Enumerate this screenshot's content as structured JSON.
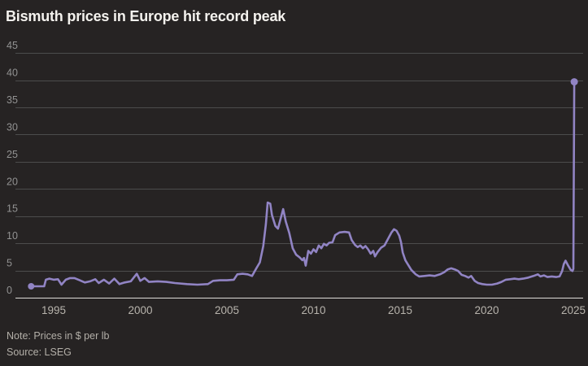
{
  "title": "Bismuth prices in Europe hit record peak",
  "note": "Note: Prices in $ per lb",
  "source": "Source: LSEG",
  "colors": {
    "background": "#262323",
    "line": "#9184c4",
    "gridline": "#4c4c4c",
    "baseline": "#dddbd8",
    "y_tick_label": "#929292",
    "x_tick_label": "#b7b3ac",
    "title_text": "#f4f2ee",
    "note_text": "#b3afa8"
  },
  "chart_data": {
    "type": "line",
    "title": "Bismuth prices in Europe hit record peak",
    "xlabel": "",
    "ylabel": "",
    "unit": "$ per lb",
    "xlim": [
      1993.2,
      2025.8
    ],
    "ylim": [
      0,
      45
    ],
    "x_ticks": [
      1995,
      2000,
      2005,
      2010,
      2015,
      2020,
      2025
    ],
    "y_ticks": [
      0,
      5,
      10,
      15,
      20,
      25,
      30,
      35,
      40,
      45
    ],
    "grid": "horizontal",
    "legend": "none",
    "markers": "circle at first and last data point",
    "series": [
      {
        "name": "Bismuth price, Europe ($ per lb)",
        "points": [
          [
            1993.7,
            2.1
          ],
          [
            1994.1,
            2.1
          ],
          [
            1994.45,
            2.1
          ],
          [
            1994.55,
            3.3
          ],
          [
            1994.75,
            3.5
          ],
          [
            1995.0,
            3.3
          ],
          [
            1995.25,
            3.4
          ],
          [
            1995.45,
            2.4
          ],
          [
            1995.7,
            3.3
          ],
          [
            1995.95,
            3.6
          ],
          [
            1996.2,
            3.6
          ],
          [
            1996.5,
            3.2
          ],
          [
            1996.8,
            2.8
          ],
          [
            1997.1,
            3.0
          ],
          [
            1997.4,
            3.4
          ],
          [
            1997.6,
            2.7
          ],
          [
            1997.9,
            3.3
          ],
          [
            1998.2,
            2.6
          ],
          [
            1998.5,
            3.5
          ],
          [
            1998.8,
            2.5
          ],
          [
            1999.1,
            2.8
          ],
          [
            1999.45,
            3.0
          ],
          [
            1999.8,
            4.4
          ],
          [
            2000.0,
            3.1
          ],
          [
            2000.25,
            3.6
          ],
          [
            2000.5,
            2.9
          ],
          [
            2001.0,
            3.0
          ],
          [
            2001.5,
            2.9
          ],
          [
            2002.0,
            2.7
          ],
          [
            2002.7,
            2.5
          ],
          [
            2003.3,
            2.4
          ],
          [
            2003.9,
            2.5
          ],
          [
            2004.2,
            3.1
          ],
          [
            2004.6,
            3.2
          ],
          [
            2005.0,
            3.2
          ],
          [
            2005.4,
            3.3
          ],
          [
            2005.6,
            4.3
          ],
          [
            2005.9,
            4.4
          ],
          [
            2006.2,
            4.3
          ],
          [
            2006.45,
            4.0
          ],
          [
            2006.7,
            5.4
          ],
          [
            2006.9,
            6.5
          ],
          [
            2007.1,
            9.5
          ],
          [
            2007.25,
            13.5
          ],
          [
            2007.35,
            17.5
          ],
          [
            2007.5,
            17.3
          ],
          [
            2007.6,
            15.2
          ],
          [
            2007.8,
            13.2
          ],
          [
            2007.95,
            12.7
          ],
          [
            2008.1,
            14.5
          ],
          [
            2008.25,
            16.3
          ],
          [
            2008.4,
            14.0
          ],
          [
            2008.6,
            11.9
          ],
          [
            2008.8,
            9.1
          ],
          [
            2009.0,
            7.9
          ],
          [
            2009.2,
            7.4
          ],
          [
            2009.35,
            6.9
          ],
          [
            2009.45,
            7.3
          ],
          [
            2009.55,
            5.9
          ],
          [
            2009.7,
            8.6
          ],
          [
            2009.85,
            8.1
          ],
          [
            2010.0,
            8.9
          ],
          [
            2010.15,
            8.4
          ],
          [
            2010.3,
            9.6
          ],
          [
            2010.45,
            9.1
          ],
          [
            2010.6,
            9.9
          ],
          [
            2010.75,
            9.6
          ],
          [
            2010.9,
            10.1
          ],
          [
            2011.1,
            10.2
          ],
          [
            2011.25,
            11.5
          ],
          [
            2011.5,
            12.0
          ],
          [
            2011.8,
            12.1
          ],
          [
            2012.05,
            12.0
          ],
          [
            2012.2,
            10.6
          ],
          [
            2012.4,
            9.7
          ],
          [
            2012.55,
            9.3
          ],
          [
            2012.7,
            9.6
          ],
          [
            2012.85,
            9.1
          ],
          [
            2013.0,
            9.5
          ],
          [
            2013.15,
            8.9
          ],
          [
            2013.3,
            8.1
          ],
          [
            2013.45,
            8.6
          ],
          [
            2013.55,
            7.6
          ],
          [
            2013.7,
            8.4
          ],
          [
            2013.9,
            9.2
          ],
          [
            2014.1,
            9.6
          ],
          [
            2014.3,
            10.8
          ],
          [
            2014.5,
            12.0
          ],
          [
            2014.65,
            12.6
          ],
          [
            2014.8,
            12.3
          ],
          [
            2014.95,
            11.4
          ],
          [
            2015.05,
            10.2
          ],
          [
            2015.15,
            8.3
          ],
          [
            2015.3,
            6.9
          ],
          [
            2015.45,
            6.1
          ],
          [
            2015.65,
            5.1
          ],
          [
            2015.9,
            4.3
          ],
          [
            2016.1,
            3.9
          ],
          [
            2016.4,
            4.0
          ],
          [
            2016.7,
            4.1
          ],
          [
            2017.0,
            4.0
          ],
          [
            2017.3,
            4.3
          ],
          [
            2017.55,
            4.7
          ],
          [
            2017.75,
            5.2
          ],
          [
            2017.95,
            5.4
          ],
          [
            2018.15,
            5.2
          ],
          [
            2018.35,
            4.9
          ],
          [
            2018.55,
            4.2
          ],
          [
            2018.75,
            4.0
          ],
          [
            2018.95,
            3.7
          ],
          [
            2019.1,
            4.0
          ],
          [
            2019.3,
            3.1
          ],
          [
            2019.5,
            2.7
          ],
          [
            2019.75,
            2.5
          ],
          [
            2020.0,
            2.4
          ],
          [
            2020.3,
            2.4
          ],
          [
            2020.6,
            2.6
          ],
          [
            2020.85,
            2.9
          ],
          [
            2021.1,
            3.3
          ],
          [
            2021.35,
            3.4
          ],
          [
            2021.6,
            3.5
          ],
          [
            2021.85,
            3.4
          ],
          [
            2022.1,
            3.5
          ],
          [
            2022.4,
            3.7
          ],
          [
            2022.7,
            4.0
          ],
          [
            2022.95,
            4.3
          ],
          [
            2023.1,
            3.9
          ],
          [
            2023.3,
            4.1
          ],
          [
            2023.5,
            3.8
          ],
          [
            2023.75,
            3.9
          ],
          [
            2024.0,
            3.8
          ],
          [
            2024.2,
            3.9
          ],
          [
            2024.35,
            4.9
          ],
          [
            2024.45,
            6.2
          ],
          [
            2024.55,
            6.8
          ],
          [
            2024.7,
            5.9
          ],
          [
            2024.85,
            5.1
          ],
          [
            2024.95,
            4.9
          ],
          [
            2025.0,
            5.3
          ],
          [
            2025.05,
            39.7
          ]
        ]
      }
    ]
  }
}
